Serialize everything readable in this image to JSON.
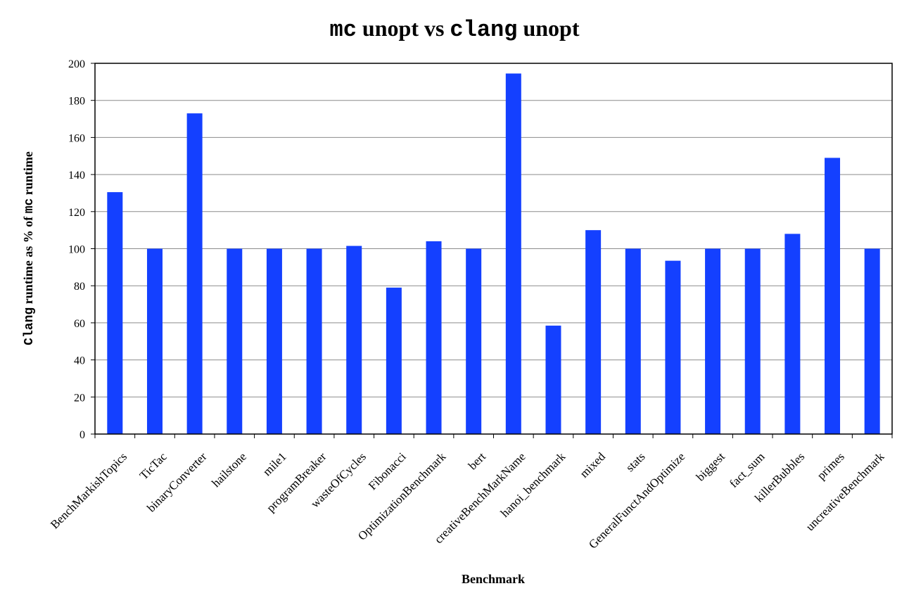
{
  "chart_data": {
    "type": "bar",
    "title_parts": [
      {
        "text": "mc",
        "mono": true
      },
      {
        "text": " unopt vs ",
        "mono": false
      },
      {
        "text": "clang",
        "mono": true
      },
      {
        "text": " unopt",
        "mono": false
      }
    ],
    "xlabel": "Benchmark",
    "ylabel_parts": [
      {
        "text": "Clang",
        "mono": true
      },
      {
        "text": " runtime as % of ",
        "mono": false
      },
      {
        "text": "mc",
        "mono": true
      },
      {
        "text": " runtime",
        "mono": false
      }
    ],
    "ylim": [
      0,
      200
    ],
    "yticks": [
      0,
      20,
      40,
      60,
      80,
      100,
      120,
      140,
      160,
      180,
      200
    ],
    "grid": true,
    "bar_color": "#1440ff",
    "categories": [
      "BenchMarkishTopics",
      "TicTac",
      "binaryConverter",
      "hailstone",
      "mile1",
      "programBreaker",
      "wasteOfCycles",
      "Fibonacci",
      "OptimizationBenchmark",
      "bert",
      "creativeBenchMarkName",
      "hanoi_benchmark",
      "mixed",
      "stats",
      "GeneralFunctAndOptimize",
      "biggest",
      "fact_sum",
      "killerBubbles",
      "primes",
      "uncreativeBenchmark"
    ],
    "values": [
      130.5,
      100,
      173,
      100,
      100,
      100,
      101.5,
      79,
      104,
      100,
      194.5,
      58.5,
      110,
      100,
      93.5,
      100,
      100,
      108,
      149,
      100
    ]
  }
}
